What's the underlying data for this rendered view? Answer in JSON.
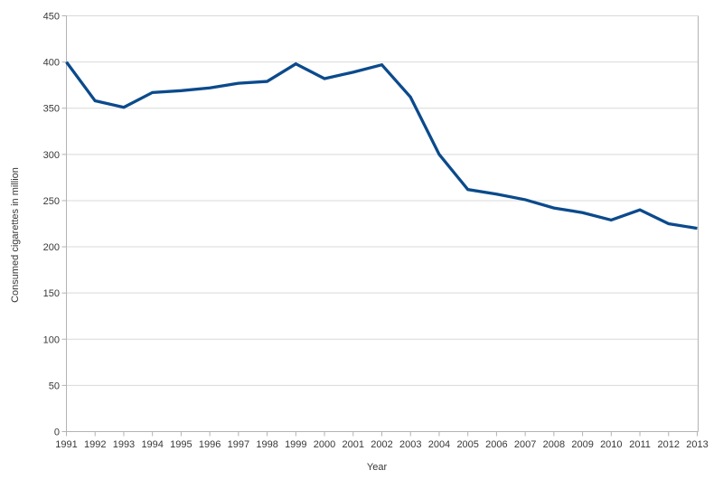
{
  "chart_data": {
    "type": "line",
    "title": "",
    "xlabel": "Year",
    "ylabel": "Consumed cigarettes in million",
    "x_categories": [
      "1991",
      "1992",
      "1993",
      "1994",
      "1995",
      "1996",
      "1997",
      "1998",
      "1999",
      "2000",
      "2001",
      "2002",
      "2003",
      "2004",
      "2005",
      "2006",
      "2007",
      "2008",
      "2009",
      "2010",
      "2011",
      "2012",
      "2013"
    ],
    "values": [
      400,
      358,
      351,
      367,
      369,
      372,
      377,
      379,
      398,
      382,
      389,
      397,
      362,
      300,
      262,
      257,
      251,
      242,
      237,
      229,
      240,
      225,
      220
    ],
    "ylim": [
      0,
      450
    ],
    "ytick_step": 50,
    "ytick_labels": [
      "0",
      "50",
      "100",
      "150",
      "200",
      "250",
      "300",
      "350",
      "400",
      "450"
    ],
    "grid": "horizontal",
    "legend_position": "none",
    "markers": "none",
    "colors": {
      "line": "#0b4a8c",
      "grid": "#d9d9d9",
      "axis": "#b3b3b3",
      "text": "#383838",
      "background": "#ffffff"
    }
  }
}
